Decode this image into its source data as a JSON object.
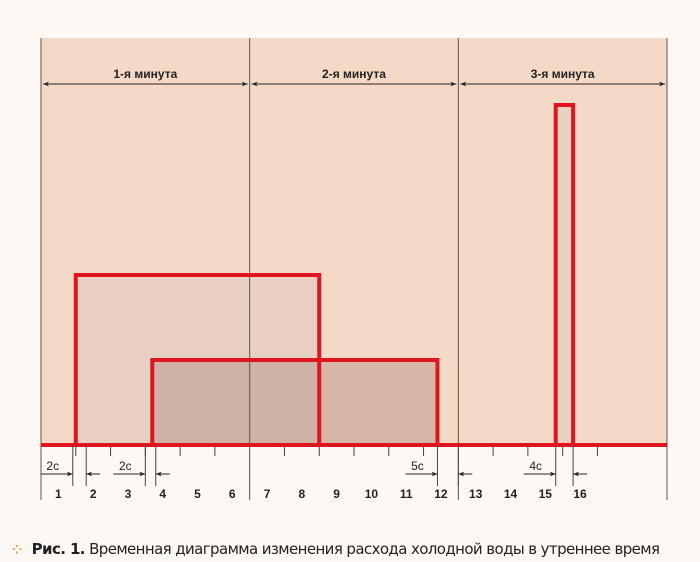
{
  "chart_data": {
    "type": "timing-diagram",
    "title": "Временная диаграмма изменения расхода холодной воды в утреннее время",
    "figure_label": "Рис. 1.",
    "xunit": "s",
    "xlim": [
      0,
      180
    ],
    "minutes": [
      {
        "label": "1-я минута",
        "start": 0,
        "end": 60
      },
      {
        "label": "2-я минута",
        "start": 60,
        "end": 120
      },
      {
        "label": "3-я минута",
        "start": 120,
        "end": 180
      }
    ],
    "tick_labels": [
      "1",
      "2",
      "3",
      "4",
      "5",
      "6",
      "7",
      "8",
      "9",
      "10",
      "11",
      "12",
      "13",
      "14",
      "15",
      "16"
    ],
    "tick_step": 10,
    "pulses": [
      {
        "start": 10,
        "end": 80,
        "level": 2
      },
      {
        "start": 32,
        "end": 114,
        "level": 1
      },
      {
        "start": 148,
        "end": 153,
        "level": 4
      }
    ],
    "annotations": [
      {
        "label": "2c",
        "from": 10,
        "to": 13
      },
      {
        "label": "2c",
        "from": 30,
        "to": 33
      },
      {
        "label": "5c",
        "from": 114,
        "to": 120
      },
      {
        "label": "4c",
        "from": 148,
        "to": 153
      }
    ],
    "colors": {
      "bg": "#f5d9c7",
      "pulse": "#e0141e",
      "fill1": "#e9cdbd",
      "fill2": "#d3b4a7",
      "caption_dots": "#f0913a"
    }
  }
}
